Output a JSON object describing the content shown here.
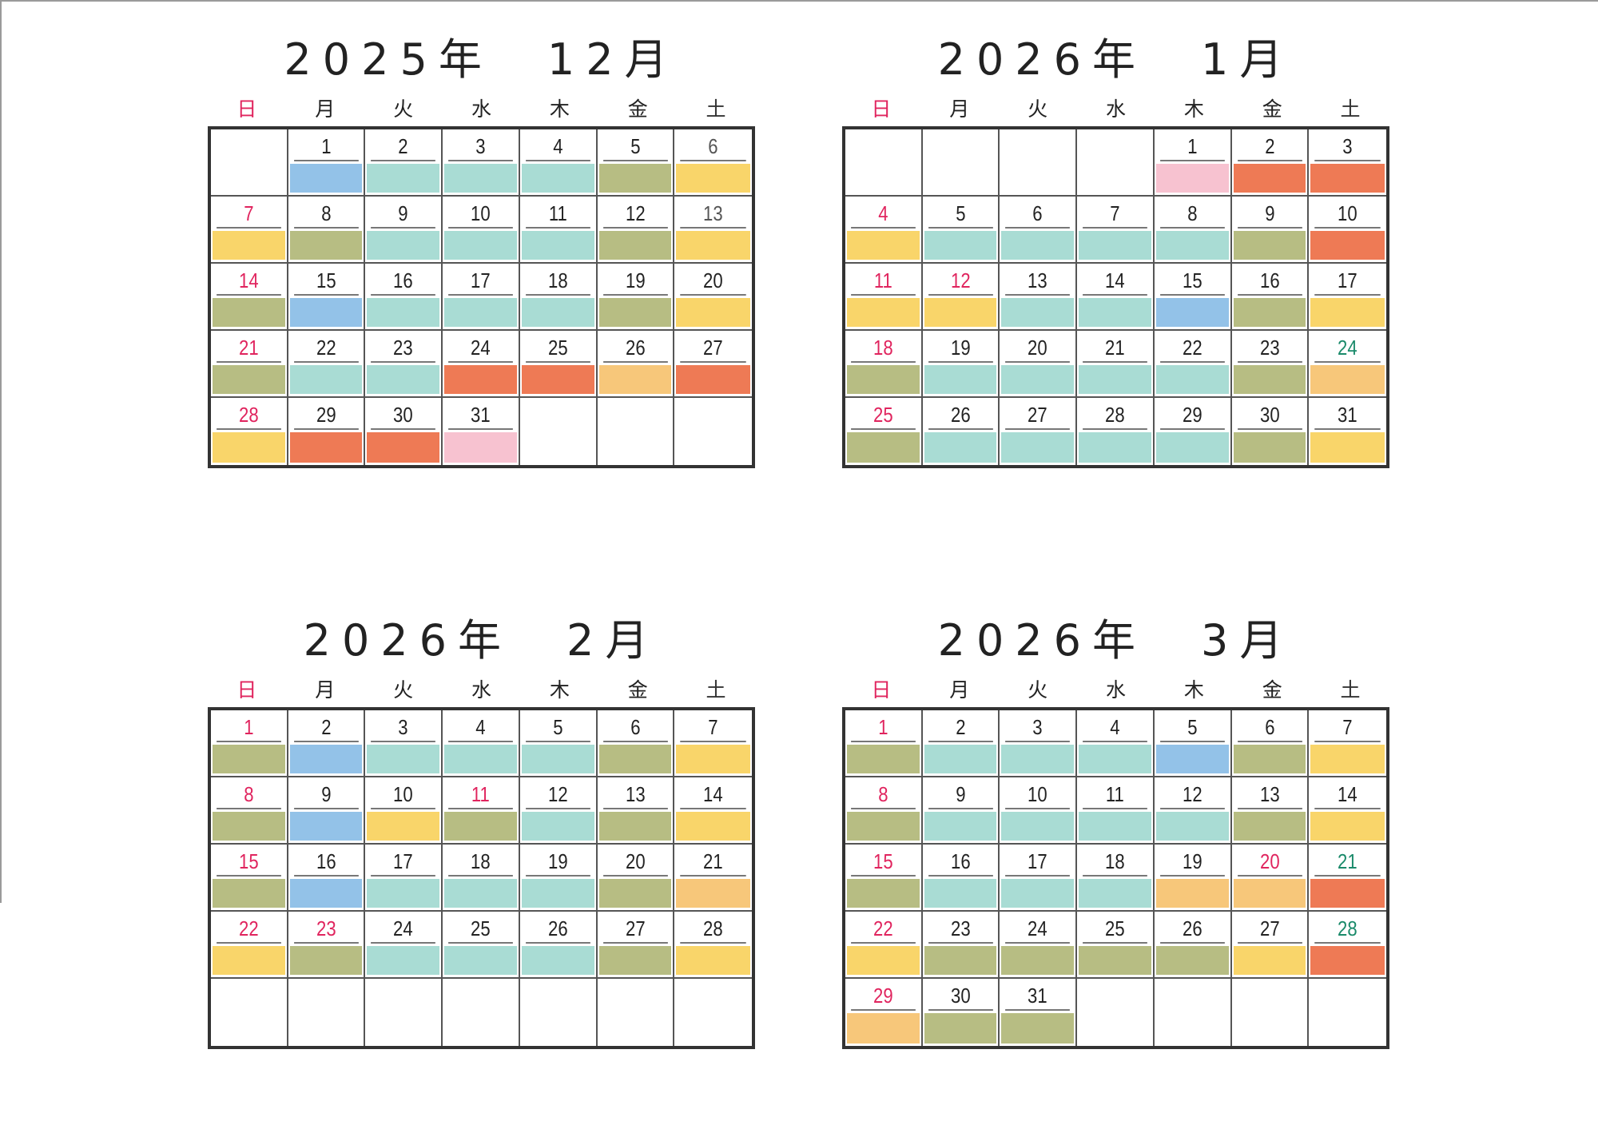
{
  "palette": {
    "b": "#93c2e8",
    "t": "#a9dcd4",
    "o": "#b7bd83",
    "y": "#f9d56a",
    "r": "#ee7a55",
    "p": "#f7c2d0",
    "a": "#f7c77a"
  },
  "weekdays": [
    "日",
    "月",
    "火",
    "水",
    "木",
    "金",
    "土"
  ],
  "calendars": [
    {
      "title": "2025年　12月",
      "weeks": [
        [
          [
            "",
            "",
            ""
          ],
          [
            "1",
            "b",
            ""
          ],
          [
            "2",
            "t",
            ""
          ],
          [
            "3",
            "t",
            ""
          ],
          [
            "4",
            "t",
            ""
          ],
          [
            "5",
            "o",
            ""
          ],
          [
            "6",
            "y",
            "gray"
          ]
        ],
        [
          [
            "7",
            "y",
            "red"
          ],
          [
            "8",
            "o",
            ""
          ],
          [
            "9",
            "t",
            ""
          ],
          [
            "10",
            "t",
            ""
          ],
          [
            "11",
            "t",
            ""
          ],
          [
            "12",
            "o",
            ""
          ],
          [
            "13",
            "y",
            "gray"
          ]
        ],
        [
          [
            "14",
            "o",
            "red"
          ],
          [
            "15",
            "b",
            ""
          ],
          [
            "16",
            "t",
            ""
          ],
          [
            "17",
            "t",
            ""
          ],
          [
            "18",
            "t",
            ""
          ],
          [
            "19",
            "o",
            ""
          ],
          [
            "20",
            "y",
            ""
          ]
        ],
        [
          [
            "21",
            "o",
            "red"
          ],
          [
            "22",
            "t",
            ""
          ],
          [
            "23",
            "t",
            ""
          ],
          [
            "24",
            "r",
            ""
          ],
          [
            "25",
            "r",
            ""
          ],
          [
            "26",
            "a",
            ""
          ],
          [
            "27",
            "r",
            ""
          ]
        ],
        [
          [
            "28",
            "y",
            "red"
          ],
          [
            "29",
            "r",
            ""
          ],
          [
            "30",
            "r",
            ""
          ],
          [
            "31",
            "p",
            ""
          ],
          [
            "",
            "",
            ""
          ],
          [
            "",
            "",
            ""
          ],
          [
            "",
            "",
            ""
          ]
        ]
      ]
    },
    {
      "title": "2026年　1月",
      "weeks": [
        [
          [
            "",
            "",
            ""
          ],
          [
            "",
            "",
            ""
          ],
          [
            "",
            "",
            ""
          ],
          [
            "",
            "",
            ""
          ],
          [
            "1",
            "p",
            ""
          ],
          [
            "2",
            "r",
            ""
          ],
          [
            "3",
            "r",
            ""
          ]
        ],
        [
          [
            "4",
            "y",
            "red"
          ],
          [
            "5",
            "t",
            ""
          ],
          [
            "6",
            "t",
            ""
          ],
          [
            "7",
            "t",
            ""
          ],
          [
            "8",
            "t",
            ""
          ],
          [
            "9",
            "o",
            ""
          ],
          [
            "10",
            "r",
            ""
          ]
        ],
        [
          [
            "11",
            "y",
            "red"
          ],
          [
            "12",
            "y",
            "red"
          ],
          [
            "13",
            "t",
            ""
          ],
          [
            "14",
            "t",
            ""
          ],
          [
            "15",
            "b",
            ""
          ],
          [
            "16",
            "o",
            ""
          ],
          [
            "17",
            "y",
            ""
          ]
        ],
        [
          [
            "18",
            "o",
            "red"
          ],
          [
            "19",
            "t",
            ""
          ],
          [
            "20",
            "t",
            ""
          ],
          [
            "21",
            "t",
            ""
          ],
          [
            "22",
            "t",
            ""
          ],
          [
            "23",
            "o",
            ""
          ],
          [
            "24",
            "a",
            "green"
          ]
        ],
        [
          [
            "25",
            "o",
            "red"
          ],
          [
            "26",
            "t",
            ""
          ],
          [
            "27",
            "t",
            ""
          ],
          [
            "28",
            "t",
            ""
          ],
          [
            "29",
            "t",
            ""
          ],
          [
            "30",
            "o",
            ""
          ],
          [
            "31",
            "y",
            ""
          ]
        ]
      ]
    },
    {
      "title": "2026年　2月",
      "weeks": [
        [
          [
            "1",
            "o",
            "red"
          ],
          [
            "2",
            "b",
            ""
          ],
          [
            "3",
            "t",
            ""
          ],
          [
            "4",
            "t",
            ""
          ],
          [
            "5",
            "t",
            ""
          ],
          [
            "6",
            "o",
            ""
          ],
          [
            "7",
            "y",
            ""
          ]
        ],
        [
          [
            "8",
            "o",
            "red"
          ],
          [
            "9",
            "b",
            ""
          ],
          [
            "10",
            "y",
            ""
          ],
          [
            "11",
            "o",
            "red"
          ],
          [
            "12",
            "t",
            ""
          ],
          [
            "13",
            "o",
            ""
          ],
          [
            "14",
            "y",
            ""
          ]
        ],
        [
          [
            "15",
            "o",
            "red"
          ],
          [
            "16",
            "b",
            ""
          ],
          [
            "17",
            "t",
            ""
          ],
          [
            "18",
            "t",
            ""
          ],
          [
            "19",
            "t",
            ""
          ],
          [
            "20",
            "o",
            ""
          ],
          [
            "21",
            "a",
            ""
          ]
        ],
        [
          [
            "22",
            "y",
            "red"
          ],
          [
            "23",
            "o",
            "red"
          ],
          [
            "24",
            "t",
            ""
          ],
          [
            "25",
            "t",
            ""
          ],
          [
            "26",
            "t",
            ""
          ],
          [
            "27",
            "o",
            ""
          ],
          [
            "28",
            "y",
            ""
          ]
        ],
        [
          [
            "",
            "",
            ""
          ],
          [
            "",
            "",
            ""
          ],
          [
            "",
            "",
            ""
          ],
          [
            "",
            "",
            ""
          ],
          [
            "",
            "",
            ""
          ],
          [
            "",
            "",
            ""
          ],
          [
            "",
            "",
            ""
          ]
        ]
      ]
    },
    {
      "title": "2026年　3月",
      "weeks": [
        [
          [
            "1",
            "o",
            "red"
          ],
          [
            "2",
            "t",
            ""
          ],
          [
            "3",
            "t",
            ""
          ],
          [
            "4",
            "t",
            ""
          ],
          [
            "5",
            "b",
            ""
          ],
          [
            "6",
            "o",
            ""
          ],
          [
            "7",
            "y",
            ""
          ]
        ],
        [
          [
            "8",
            "o",
            "red"
          ],
          [
            "9",
            "t",
            ""
          ],
          [
            "10",
            "t",
            ""
          ],
          [
            "11",
            "t",
            ""
          ],
          [
            "12",
            "t",
            ""
          ],
          [
            "13",
            "o",
            ""
          ],
          [
            "14",
            "y",
            ""
          ]
        ],
        [
          [
            "15",
            "o",
            "red"
          ],
          [
            "16",
            "t",
            ""
          ],
          [
            "17",
            "t",
            ""
          ],
          [
            "18",
            "t",
            ""
          ],
          [
            "19",
            "a",
            ""
          ],
          [
            "20",
            "a",
            "red"
          ],
          [
            "21",
            "r",
            "green"
          ]
        ],
        [
          [
            "22",
            "y",
            "red"
          ],
          [
            "23",
            "o",
            ""
          ],
          [
            "24",
            "o",
            ""
          ],
          [
            "25",
            "o",
            ""
          ],
          [
            "26",
            "o",
            ""
          ],
          [
            "27",
            "y",
            ""
          ],
          [
            "28",
            "r",
            "green"
          ]
        ],
        [
          [
            "29",
            "a",
            "red"
          ],
          [
            "30",
            "o",
            ""
          ],
          [
            "31",
            "o",
            ""
          ],
          [
            "",
            "",
            ""
          ],
          [
            "",
            "",
            ""
          ],
          [
            "",
            "",
            ""
          ],
          [
            "",
            "",
            ""
          ]
        ]
      ]
    }
  ]
}
